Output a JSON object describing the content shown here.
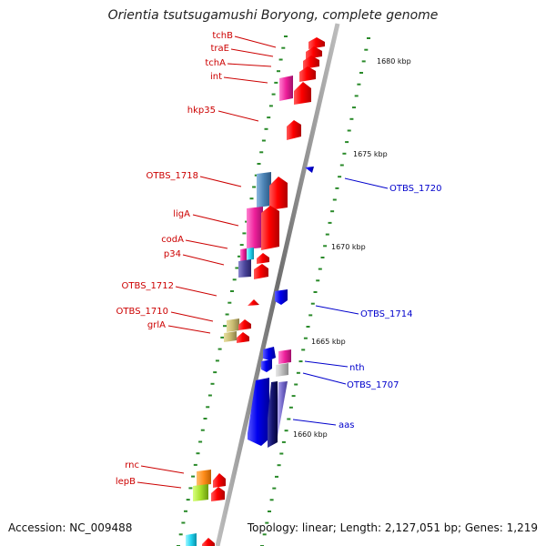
{
  "title": "Orientia tsutsugamushi Boryong, complete genome",
  "footer": {
    "accession_label": "Accession: NC_009488",
    "stats_label": "Topology: linear; Length: 2,127,051 bp; Genes: 1,219"
  },
  "colors": {
    "backbone": "#8c8c8c",
    "forward_label": "#cc0000",
    "reverse_label": "#0000cc",
    "tick": "#2a8a2a"
  },
  "scale": {
    "ticks": [
      {
        "kbp": 1680,
        "label": "1680 kbp"
      },
      {
        "kbp": 1675,
        "label": "1675 kbp"
      },
      {
        "kbp": 1670,
        "label": "1670 kbp"
      },
      {
        "kbp": 1665,
        "label": "1665 kbp"
      },
      {
        "kbp": 1660,
        "label": "1660 kbp"
      }
    ]
  },
  "genes": [
    {
      "name": "tchB",
      "strand": "forward",
      "color": "#ff0000"
    },
    {
      "name": "traE",
      "strand": "forward",
      "color": "#ff0000"
    },
    {
      "name": "tchA",
      "strand": "forward",
      "color": "#ff0000"
    },
    {
      "name": "int",
      "strand": "forward",
      "color": "#ff0000"
    },
    {
      "name": "hkp35",
      "strand": "forward",
      "color": "#ff0000"
    },
    {
      "name": "OTBS_1720",
      "strand": "reverse",
      "color": "#0000ff"
    },
    {
      "name": "OTBS_1718",
      "strand": "forward",
      "color": "#ff0000"
    },
    {
      "name": "ligA",
      "strand": "forward",
      "color": "#ff0000"
    },
    {
      "name": "codA",
      "strand": "forward",
      "color": "#ff0000"
    },
    {
      "name": "p34",
      "strand": "forward",
      "color": "#ff0000"
    },
    {
      "name": "OTBS_1714",
      "strand": "reverse",
      "color": "#0000ff"
    },
    {
      "name": "OTBS_1712",
      "strand": "forward",
      "color": "#ff0000"
    },
    {
      "name": "OTBS_1710",
      "strand": "forward",
      "color": "#ff0000"
    },
    {
      "name": "grlA",
      "strand": "forward",
      "color": "#ff0000"
    },
    {
      "name": "nth",
      "strand": "reverse",
      "color": "#0000ff"
    },
    {
      "name": "OTBS_1707",
      "strand": "reverse",
      "color": "#0000ff"
    },
    {
      "name": "aas",
      "strand": "reverse",
      "color": "#0000ff"
    },
    {
      "name": "rnc",
      "strand": "forward",
      "color": "#ff0000"
    },
    {
      "name": "lepB",
      "strand": "forward",
      "color": "#ff0000"
    }
  ]
}
